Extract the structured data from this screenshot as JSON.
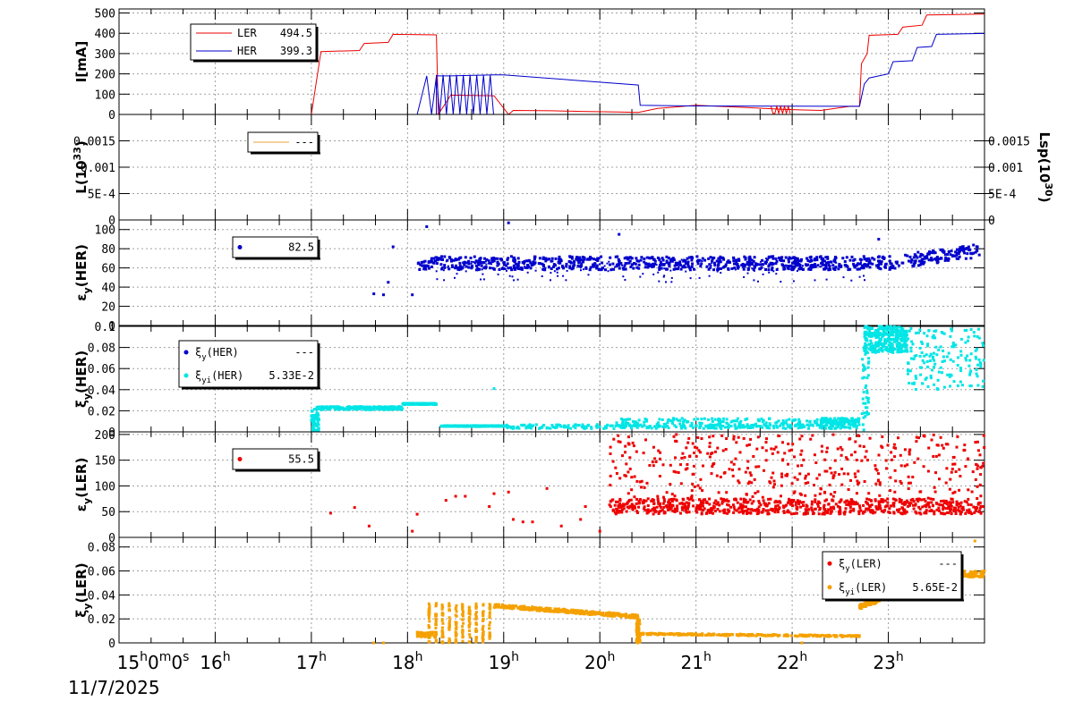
{
  "colors": {
    "ler": "#ee0000",
    "her": "#0000cc",
    "cyan": "#00e5e5",
    "orange": "#f5a100",
    "lum": "#e8a33a",
    "grid": "#a0a0a0"
  },
  "chart_data": [
    {
      "id": "current",
      "type": "line",
      "ylabel": "I[mA]",
      "ylim": [
        0,
        520
      ],
      "yticks": [
        "0",
        "100",
        "200",
        "300",
        "400",
        "500"
      ],
      "legend": [
        {
          "label": "LER",
          "value": "494.5",
          "color": "#ee0000"
        },
        {
          "label": "HER",
          "value": "399.3",
          "color": "#0000cc"
        }
      ],
      "series": [
        {
          "name": "LER",
          "color": "#ee0000",
          "x": [
            15.0,
            17.0,
            17.1,
            17.5,
            17.55,
            17.8,
            17.85,
            18.3,
            18.32,
            18.45,
            18.9,
            19.05,
            19.1,
            19.5,
            19.8,
            20.2,
            20.4,
            20.6,
            21.0,
            21.5,
            21.9,
            22.3,
            22.6,
            22.7,
            22.72,
            22.78,
            22.8,
            23.1,
            23.15,
            23.35,
            23.4,
            24.0
          ],
          "y": [
            0,
            0,
            310,
            315,
            350,
            355,
            395,
            392,
            0,
            95,
            92,
            0,
            20,
            18,
            15,
            12,
            10,
            30,
            45,
            35,
            25,
            20,
            40,
            40,
            250,
            300,
            390,
            395,
            430,
            440,
            490,
            494.5
          ]
        },
        {
          "name": "HER",
          "color": "#0000cc",
          "x": [
            15.0,
            18.1,
            18.2,
            18.25,
            18.3,
            18.45,
            18.9,
            19.0,
            20.4,
            20.42,
            21.0,
            22.6,
            22.7,
            22.75,
            22.8,
            23.0,
            23.05,
            23.25,
            23.3,
            23.45,
            23.5,
            24.0
          ],
          "y": [
            0,
            0,
            190,
            0,
            190,
            190,
            195,
            195,
            145,
            45,
            42,
            40,
            40,
            150,
            180,
            200,
            260,
            265,
            330,
            335,
            395,
            399.3
          ]
        }
      ]
    },
    {
      "id": "luminosity",
      "type": "line",
      "ylabel": "L(10",
      "ylabel_sup": "33",
      "ylabel_end": ")",
      "ylabel_right": "Lsp(10",
      "ylabel_right_sup": "30",
      "ylabel_right_end": ")",
      "ylim": [
        0,
        0.002
      ],
      "yticks": [
        "0",
        "5E-4",
        "0.001",
        "0.0015"
      ],
      "yticks_values": [
        0,
        0.0005,
        0.001,
        0.0015
      ],
      "legend": [
        {
          "label": "",
          "value": "---",
          "color": "#e8a33a"
        }
      ]
    },
    {
      "id": "emit_her",
      "type": "scatter",
      "ylabel": "ε",
      "ylabel_sub": "y",
      "ylabel_end": "(HER)",
      "ylim": [
        0,
        110
      ],
      "yticks": [
        "0",
        "20",
        "40",
        "60",
        "80",
        "100"
      ],
      "yticks_values": [
        0,
        20,
        40,
        60,
        80,
        100
      ],
      "legend": [
        {
          "label": "",
          "value": "82.5",
          "color": "#0000cc"
        }
      ]
    },
    {
      "id": "xi_her",
      "type": "scatter",
      "ylabel": "ξ",
      "ylabel_sub": "y",
      "ylabel_end": "(HER)",
      "ylim": [
        0,
        0.1
      ],
      "yticks": [
        "0",
        "0.02",
        "0.04",
        "0.06",
        "0.08",
        "0.1"
      ],
      "yticks_values": [
        0,
        0.02,
        0.04,
        0.06,
        0.08,
        0.1
      ],
      "legend": [
        {
          "label": "ξ",
          "sub": "y",
          "label_end": "(HER)",
          "value": "---",
          "color": "#0000cc"
        },
        {
          "label": "ξ",
          "sub": "yi",
          "label_end": "(HER)",
          "value": "5.33E-2",
          "color": "#00e5e5"
        }
      ]
    },
    {
      "id": "emit_ler",
      "type": "scatter",
      "ylabel": "ε",
      "ylabel_sub": "y",
      "ylabel_end": "(LER)",
      "ylim": [
        0,
        205
      ],
      "yticks": [
        "0",
        "50",
        "100",
        "150",
        "200"
      ],
      "yticks_values": [
        0,
        50,
        100,
        150,
        200
      ],
      "legend": [
        {
          "label": "",
          "value": "55.5",
          "color": "#ee0000"
        }
      ]
    },
    {
      "id": "xi_ler",
      "type": "scatter",
      "ylabel": "ξ",
      "ylabel_sub": "y",
      "ylabel_end": "(LER)",
      "ylim": [
        0,
        0.088
      ],
      "yticks": [
        "0",
        "0.02",
        "0.04",
        "0.06",
        "0.08"
      ],
      "yticks_values": [
        0,
        0.02,
        0.04,
        0.06,
        0.08
      ],
      "legend": [
        {
          "label": "ξ",
          "sub": "y",
          "label_end": "(LER)",
          "value": "---",
          "color": "#ee0000"
        },
        {
          "label": "ξ",
          "sub": "yi",
          "label_end": "(LER)",
          "value": "5.65E-2",
          "color": "#f5a100"
        }
      ]
    }
  ],
  "xaxis": {
    "range_hours": [
      15,
      24
    ],
    "ticks": [
      {
        "h": 15,
        "label": "15",
        "sup": "h",
        "extra": "0",
        "extra_sup": "m",
        "extra2": "0",
        "extra2_sup": "s"
      },
      {
        "h": 16,
        "label": "16",
        "sup": "h"
      },
      {
        "h": 17,
        "label": "17",
        "sup": "h"
      },
      {
        "h": 18,
        "label": "18",
        "sup": "h"
      },
      {
        "h": 19,
        "label": "19",
        "sup": "h"
      },
      {
        "h": 20,
        "label": "20",
        "sup": "h"
      },
      {
        "h": 21,
        "label": "21",
        "sup": "h"
      },
      {
        "h": 22,
        "label": "22",
        "sup": "h"
      },
      {
        "h": 23,
        "label": "23",
        "sup": "h"
      }
    ],
    "date": "11/7/2025"
  }
}
